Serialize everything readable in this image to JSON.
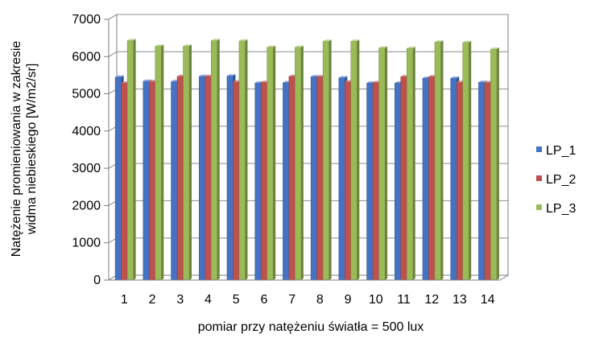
{
  "chart_data": {
    "type": "bar",
    "categories": [
      "1",
      "2",
      "3",
      "4",
      "5",
      "6",
      "7",
      "8",
      "9",
      "10",
      "11",
      "12",
      "13",
      "14"
    ],
    "series": [
      {
        "name": "LP_1",
        "values": [
          5450,
          5340,
          5330,
          5470,
          5480,
          5290,
          5300,
          5460,
          5430,
          5290,
          5290,
          5420,
          5420,
          5310
        ],
        "color": "#4472c4"
      },
      {
        "name": "LP_2",
        "values": [
          5290,
          5330,
          5470,
          5470,
          5320,
          5310,
          5470,
          5460,
          5320,
          5300,
          5460,
          5460,
          5310,
          5300
        ],
        "color": "#c0504d"
      },
      {
        "name": "LP_3",
        "values": [
          6430,
          6280,
          6280,
          6430,
          6420,
          6250,
          6250,
          6410,
          6410,
          6230,
          6220,
          6390,
          6380,
          6200
        ],
        "color": "#9bbb59"
      }
    ],
    "yticks": [
      "0",
      "1000",
      "2000",
      "3000",
      "4000",
      "5000",
      "6000",
      "7000"
    ],
    "ylim": [
      0,
      7000
    ],
    "xlabel": "pomiar przy natężeniu światła = 500 lux",
    "ylabel_line1": "Natężenie promieniowania w zakresie",
    "ylabel_line2": "widma niebieskiego [W/m2/sr]",
    "grid": true,
    "legend_position": "right",
    "style": "3d-clustered-column"
  }
}
